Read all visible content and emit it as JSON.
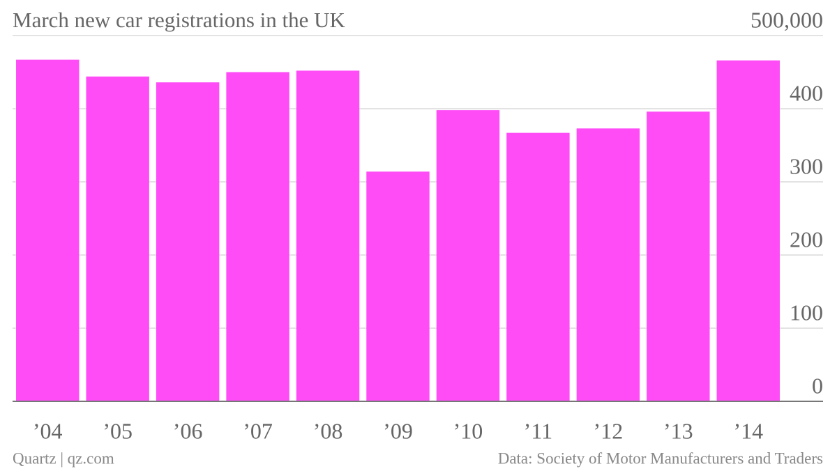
{
  "chart_data": {
    "type": "bar",
    "title": "March new car registrations in the UK",
    "categories": [
      "’04",
      "’05",
      "’06",
      "’07",
      "’08",
      "’09",
      "’10",
      "’11",
      "’12",
      "’13",
      "’14"
    ],
    "values": [
      467000,
      444000,
      436000,
      450000,
      452000,
      314000,
      398000,
      367000,
      373000,
      396000,
      466000
    ],
    "color": "#ff4cf7",
    "ylim": [
      0,
      500000
    ],
    "yticks": [
      0,
      {
        "value": 100000,
        "label": "100"
      },
      {
        "value": 200000,
        "label": "200"
      },
      {
        "value": 300000,
        "label": "300"
      },
      {
        "value": 400000,
        "label": "400"
      },
      {
        "value": 500000,
        "label": "500,000"
      }
    ],
    "grid": true,
    "credit": "Quartz | qz.com",
    "source": "Data: Society of Motor Manufacturers and Traders"
  }
}
